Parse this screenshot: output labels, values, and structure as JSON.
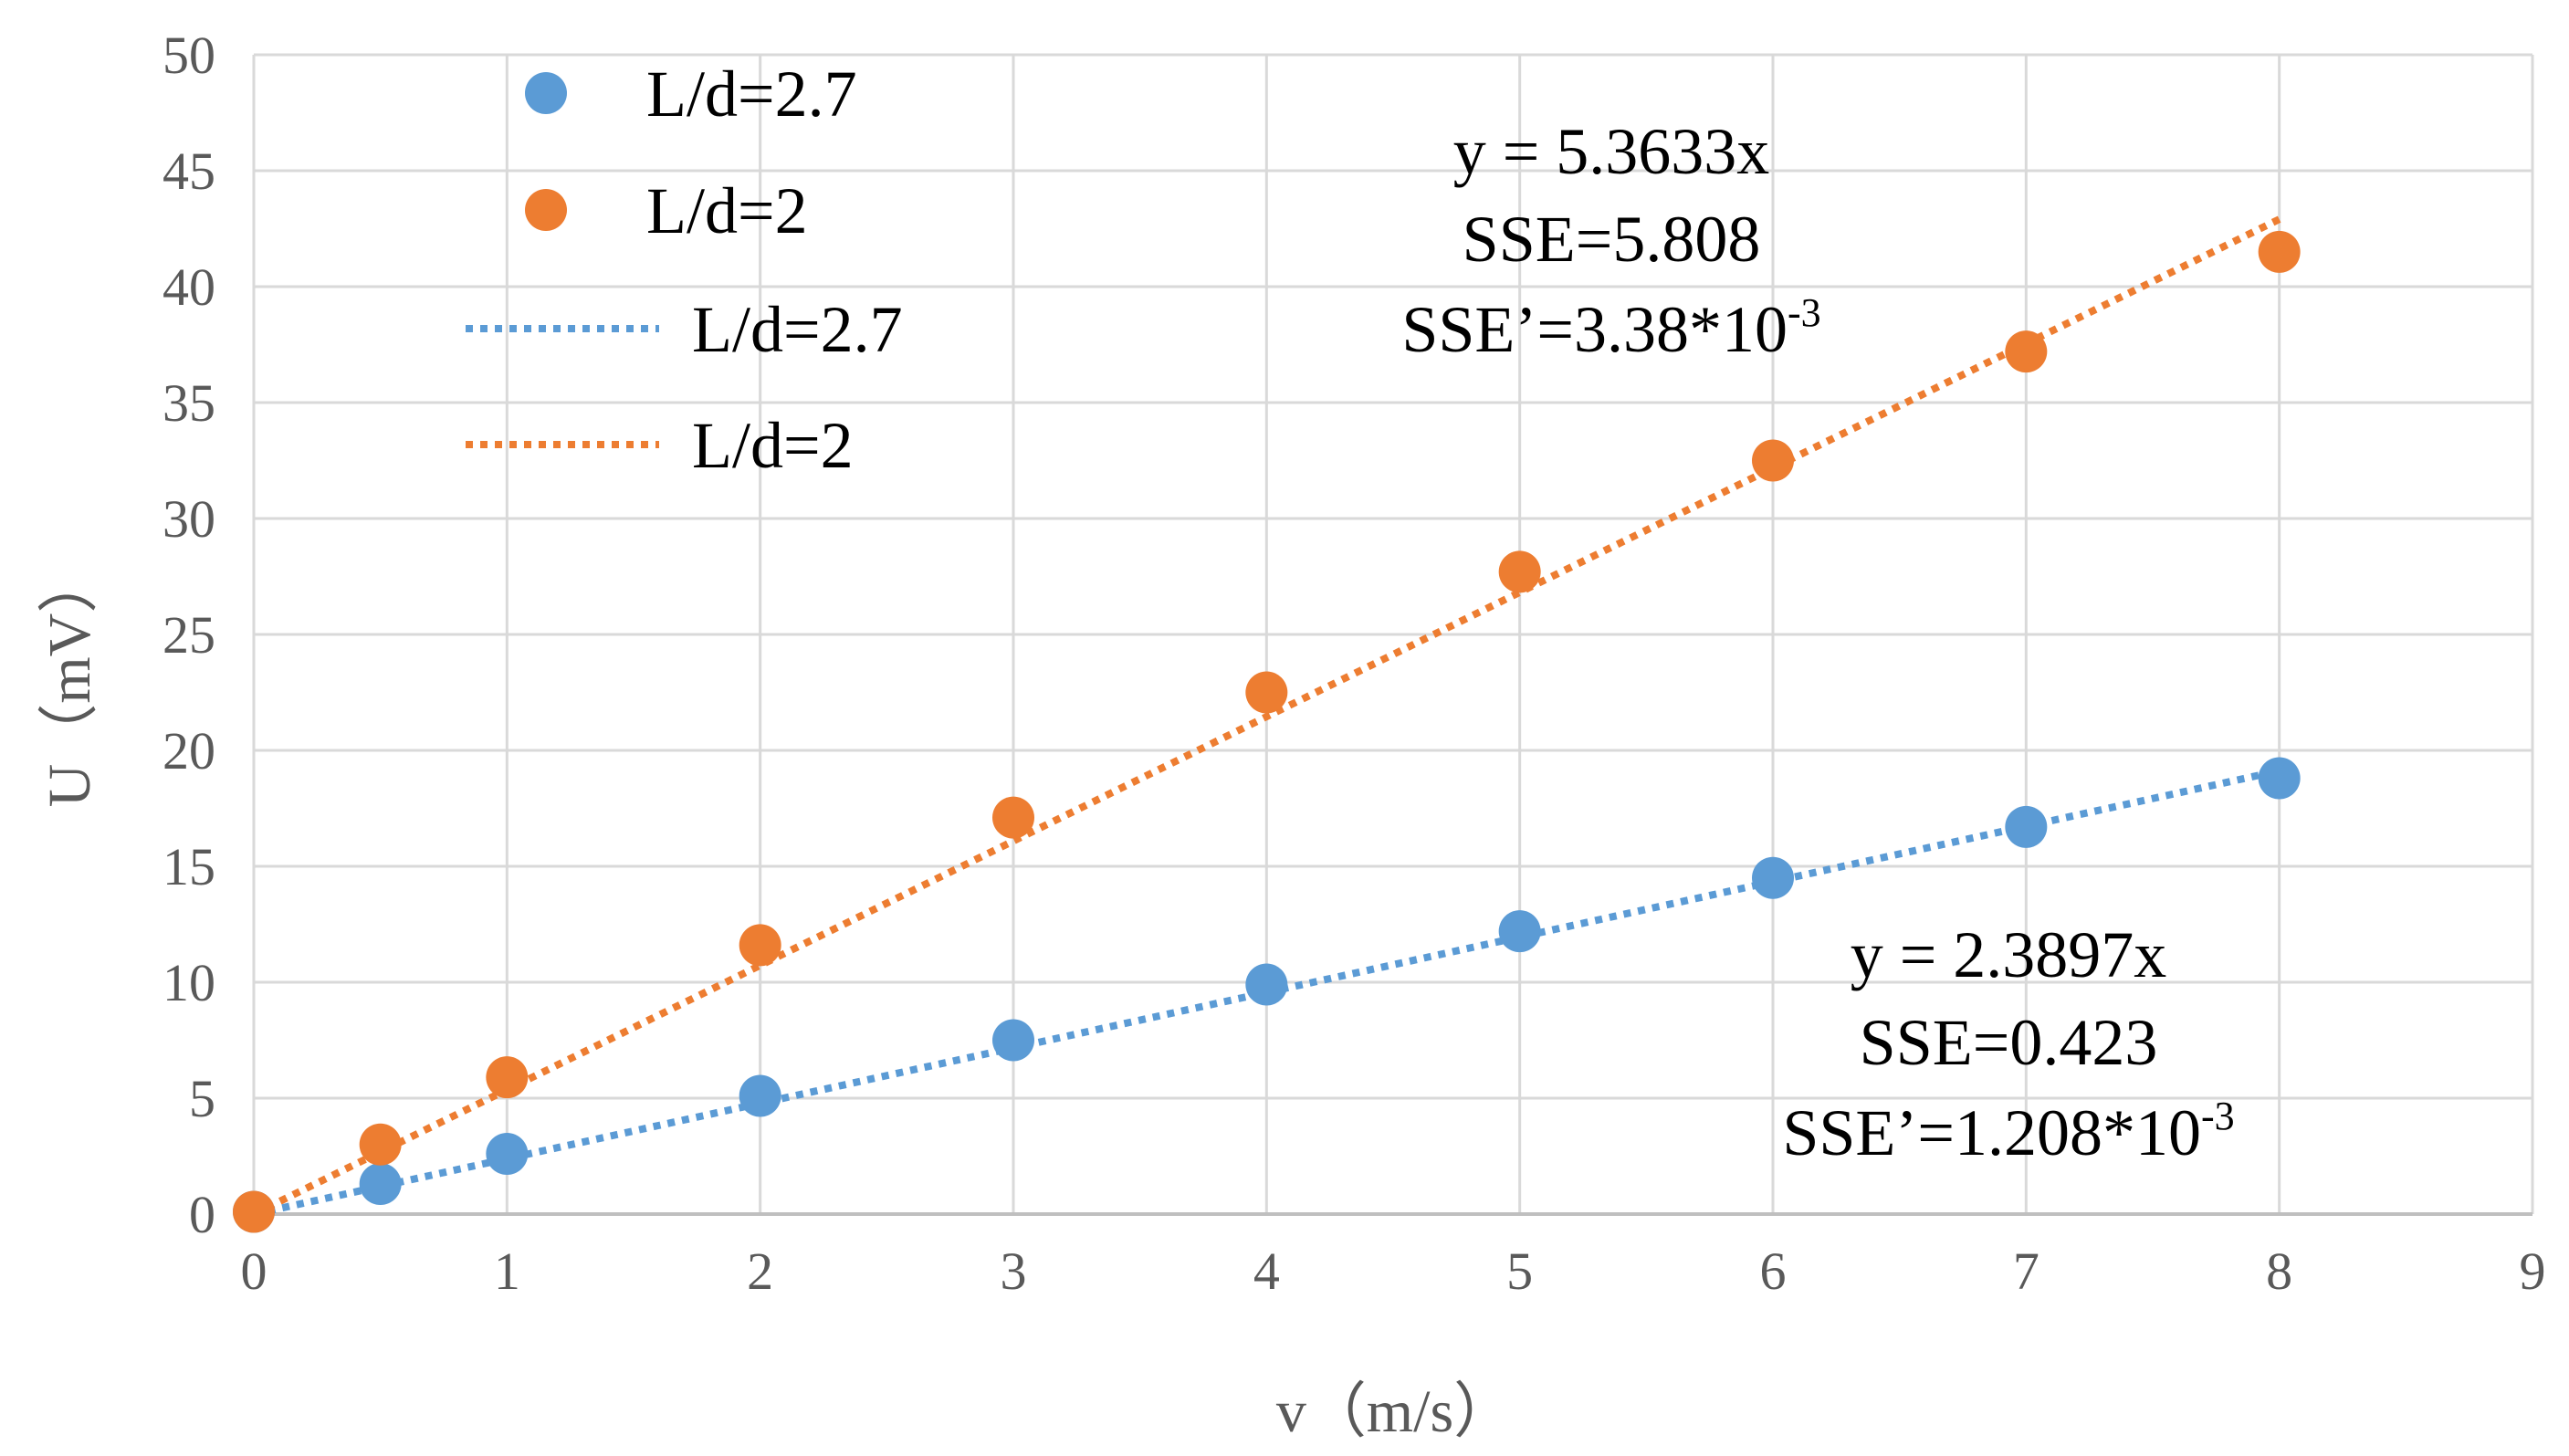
{
  "chart_data": {
    "type": "scatter",
    "title": "",
    "xlabel": "v（m/s）",
    "ylabel": "U（mV）",
    "xlim": [
      0,
      9
    ],
    "ylim": [
      0,
      50
    ],
    "x_ticks": [
      "0",
      "1",
      "2",
      "3",
      "4",
      "5",
      "6",
      "7",
      "8",
      "9"
    ],
    "y_ticks": [
      "0",
      "5",
      "10",
      "15",
      "20",
      "25",
      "30",
      "35",
      "40",
      "45",
      "50"
    ],
    "grid": true,
    "legend_position": "top-left",
    "series": [
      {
        "name": "L/d=2.7",
        "kind": "scatter",
        "color": "#5B9BD5",
        "x": [
          0,
          0.5,
          1,
          2,
          3,
          4,
          5,
          6,
          7,
          8
        ],
        "y": [
          0.1,
          1.3,
          2.6,
          5.1,
          7.5,
          9.9,
          12.2,
          14.5,
          16.7,
          18.8
        ]
      },
      {
        "name": "L/d=2",
        "kind": "scatter",
        "color": "#ED7D31",
        "x": [
          0,
          0.5,
          1,
          2,
          3,
          4,
          5,
          6,
          7,
          8
        ],
        "y": [
          0.1,
          3.0,
          5.9,
          11.6,
          17.1,
          22.5,
          27.7,
          32.5,
          37.2,
          41.5
        ]
      }
    ],
    "trendlines": [
      {
        "name": "L/d=2.7",
        "kind": "linear-trendline",
        "style": "dotted",
        "color": "#5B9BD5",
        "slope": 2.3897,
        "x_range": [
          0,
          8
        ]
      },
      {
        "name": "L/d=2",
        "kind": "linear-trendline",
        "style": "dotted",
        "color": "#ED7D31",
        "slope": 5.3633,
        "x_range": [
          0,
          8
        ]
      }
    ],
    "annotations": {
      "orange": {
        "equation": "y = 5.3633x",
        "sse": "SSE=5.808",
        "sse_prime_base": "SSE’=3.38*10",
        "sse_prime_exp": "-3"
      },
      "blue": {
        "equation": "y = 2.3897x",
        "sse": "SSE=0.423",
        "sse_prime_base": "SSE’=1.208*10",
        "sse_prime_exp": "-3"
      }
    }
  }
}
